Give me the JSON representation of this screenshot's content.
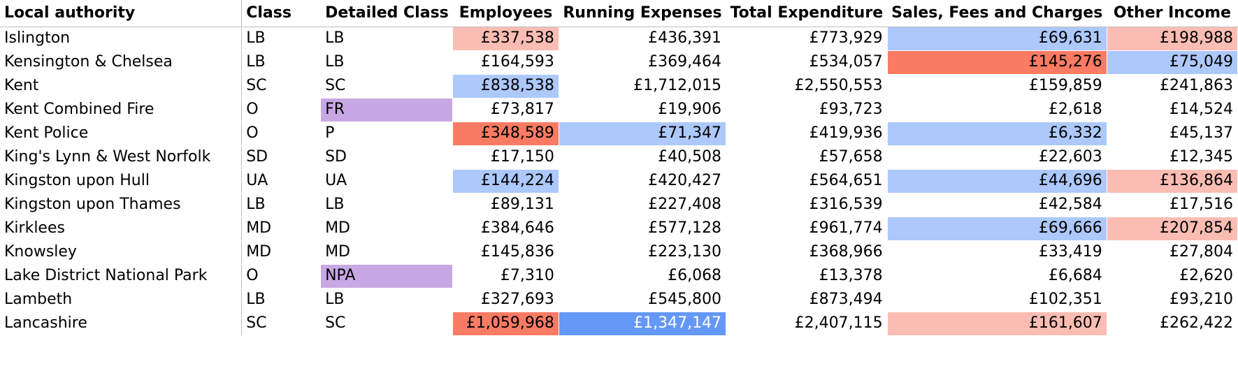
{
  "colors": {
    "light_red": "#fbbdb3",
    "dark_red": "#fa7b63",
    "light_blue": "#adc8fb",
    "dark_blue": "#6498f6",
    "purple": "#c8a8e4"
  },
  "headers": {
    "local_authority": "Local authority",
    "class": "Class",
    "detailed_class": "Detailed Class",
    "employees": "Employees",
    "running_expenses": "Running Expenses",
    "total_expenditure": "Total Expenditure",
    "sales_fees_charges": "Sales, Fees and Charges",
    "other_income": "Other Income"
  },
  "rows": [
    {
      "name": "Islington",
      "class": "LB",
      "detail": "LB",
      "detail_shaded": false,
      "employees": "£337,538",
      "employees_color": "light_red",
      "running": "£436,391",
      "running_color": "",
      "total": "£773,929",
      "total_color": "",
      "sales": "£69,631",
      "sales_color": "light_blue",
      "other": "£198,988",
      "other_color": "light_red"
    },
    {
      "name": "Kensington & Chelsea",
      "class": "LB",
      "detail": "LB",
      "detail_shaded": false,
      "employees": "£164,593",
      "employees_color": "",
      "running": "£369,464",
      "running_color": "",
      "total": "£534,057",
      "total_color": "",
      "sales": "£145,276",
      "sales_color": "dark_red",
      "other": "£75,049",
      "other_color": "light_blue"
    },
    {
      "name": "Kent",
      "class": "SC",
      "detail": "SC",
      "detail_shaded": false,
      "employees": "£838,538",
      "employees_color": "light_blue",
      "running": "£1,712,015",
      "running_color": "",
      "total": "£2,550,553",
      "total_color": "",
      "sales": "£159,859",
      "sales_color": "",
      "other": "£241,863",
      "other_color": ""
    },
    {
      "name": "Kent Combined Fire",
      "class": "O",
      "detail": "FR",
      "detail_shaded": true,
      "employees": "£73,817",
      "employees_color": "",
      "running": "£19,906",
      "running_color": "",
      "total": "£93,723",
      "total_color": "",
      "sales": "£2,618",
      "sales_color": "",
      "other": "£14,524",
      "other_color": ""
    },
    {
      "name": "Kent Police",
      "class": "O",
      "detail": "P",
      "detail_shaded": false,
      "employees": "£348,589",
      "employees_color": "dark_red",
      "running": "£71,347",
      "running_color": "light_blue",
      "total": "£419,936",
      "total_color": "",
      "sales": "£6,332",
      "sales_color": "light_blue",
      "other": "£45,137",
      "other_color": ""
    },
    {
      "name": "King's Lynn & West Norfolk",
      "class": "SD",
      "detail": "SD",
      "detail_shaded": false,
      "employees": "£17,150",
      "employees_color": "",
      "running": "£40,508",
      "running_color": "",
      "total": "£57,658",
      "total_color": "",
      "sales": "£22,603",
      "sales_color": "",
      "other": "£12,345",
      "other_color": ""
    },
    {
      "name": "Kingston upon Hull",
      "class": "UA",
      "detail": "UA",
      "detail_shaded": false,
      "employees": "£144,224",
      "employees_color": "light_blue",
      "running": "£420,427",
      "running_color": "",
      "total": "£564,651",
      "total_color": "",
      "sales": "£44,696",
      "sales_color": "light_blue",
      "other": "£136,864",
      "other_color": "light_red"
    },
    {
      "name": "Kingston upon Thames",
      "class": "LB",
      "detail": "LB",
      "detail_shaded": false,
      "employees": "£89,131",
      "employees_color": "",
      "running": "£227,408",
      "running_color": "",
      "total": "£316,539",
      "total_color": "",
      "sales": "£42,584",
      "sales_color": "",
      "other": "£17,516",
      "other_color": ""
    },
    {
      "name": "Kirklees",
      "class": "MD",
      "detail": "MD",
      "detail_shaded": false,
      "employees": "£384,646",
      "employees_color": "",
      "running": "£577,128",
      "running_color": "",
      "total": "£961,774",
      "total_color": "",
      "sales": "£69,666",
      "sales_color": "light_blue",
      "other": "£207,854",
      "other_color": "light_red"
    },
    {
      "name": "Knowsley",
      "class": "MD",
      "detail": "MD",
      "detail_shaded": false,
      "employees": "£145,836",
      "employees_color": "",
      "running": "£223,130",
      "running_color": "",
      "total": "£368,966",
      "total_color": "",
      "sales": "£33,419",
      "sales_color": "",
      "other": "£27,804",
      "other_color": ""
    },
    {
      "name": "Lake District National Park",
      "class": "O",
      "detail": "NPA",
      "detail_shaded": true,
      "employees": "£7,310",
      "employees_color": "",
      "running": "£6,068",
      "running_color": "",
      "total": "£13,378",
      "total_color": "",
      "sales": "£6,684",
      "sales_color": "",
      "other": "£2,620",
      "other_color": ""
    },
    {
      "name": "Lambeth",
      "class": "LB",
      "detail": "LB",
      "detail_shaded": false,
      "employees": "£327,693",
      "employees_color": "",
      "running": "£545,800",
      "running_color": "",
      "total": "£873,494",
      "total_color": "",
      "sales": "£102,351",
      "sales_color": "",
      "other": "£93,210",
      "other_color": ""
    },
    {
      "name": "Lancashire",
      "class": "SC",
      "detail": "SC",
      "detail_shaded": false,
      "employees": "£1,059,968",
      "employees_color": "dark_red",
      "running": "£1,347,147",
      "running_color": "dark_blue",
      "total": "£2,407,115",
      "total_color": "",
      "sales": "£161,607",
      "sales_color": "light_red",
      "other": "£262,422",
      "other_color": ""
    }
  ]
}
